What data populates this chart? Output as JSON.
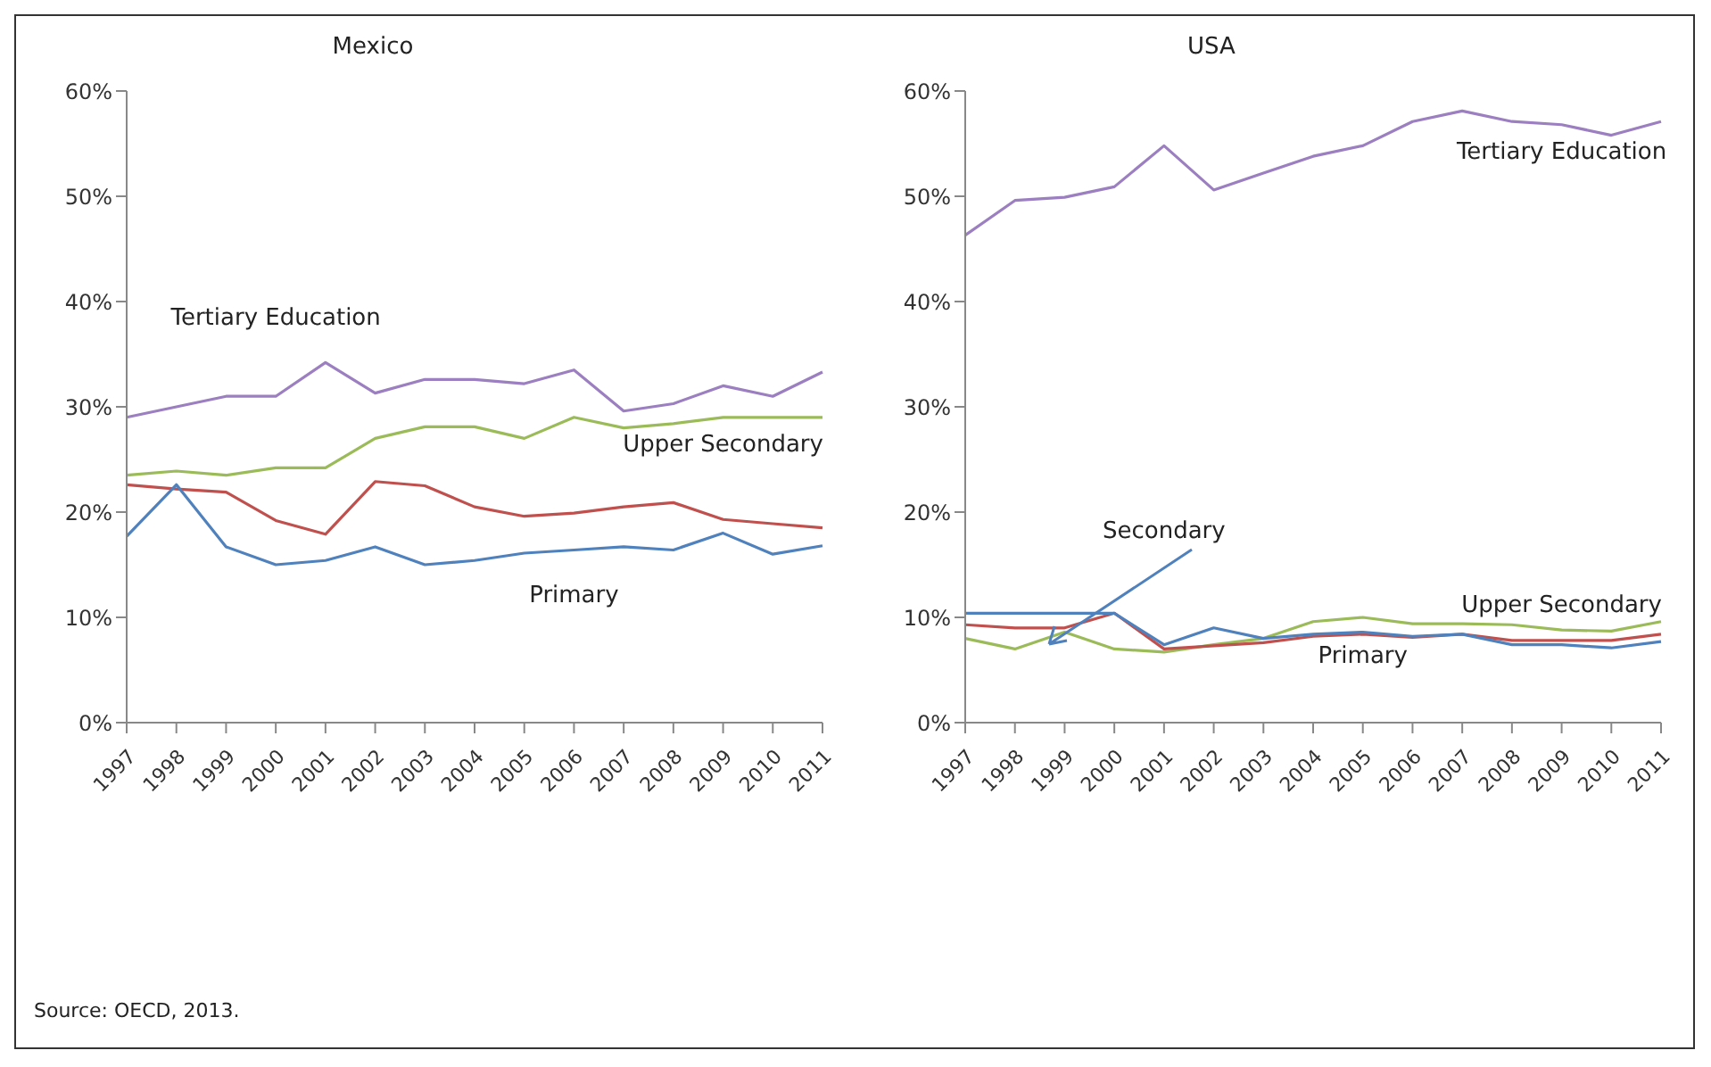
{
  "chart_data": [
    {
      "type": "line",
      "title": "Mexico",
      "categories": [
        "1997",
        "1998",
        "1999",
        "2000",
        "2001",
        "2002",
        "2003",
        "2004",
        "2005",
        "2006",
        "2007",
        "2008",
        "2009",
        "2010",
        "2011"
      ],
      "series": [
        {
          "name": "Tertiary  Education",
          "color": "#9b7fc0",
          "values": [
            29,
            30,
            31,
            31,
            34.2,
            31.3,
            32.6,
            32.6,
            32.2,
            33.5,
            29.6,
            30.3,
            32,
            31,
            33.3
          ]
        },
        {
          "name": "Upper Secondary",
          "color": "#9bbb59",
          "values": [
            23.5,
            23.9,
            23.5,
            24.2,
            24.2,
            27,
            28.1,
            28.1,
            27,
            29,
            28,
            28.4,
            29,
            29,
            29
          ]
        },
        {
          "color": "#c0504d",
          "values": [
            22.6,
            22.2,
            21.9,
            19.2,
            17.9,
            22.9,
            22.5,
            20.5,
            19.6,
            19.9,
            20.5,
            20.9,
            19.3,
            18.9,
            18.5
          ]
        },
        {
          "name": "Primary",
          "color": "#4f81bd",
          "values": [
            17.7,
            22.6,
            16.7,
            15,
            15.4,
            16.7,
            15,
            15.4,
            16.1,
            16.4,
            16.7,
            16.4,
            18,
            16,
            16.8
          ]
        }
      ],
      "ylim": [
        0,
        60
      ],
      "yticks": [
        {
          "value": 0,
          "label": "0%"
        },
        {
          "value": 10,
          "label": "10%"
        },
        {
          "value": 20,
          "label": "20%"
        },
        {
          "value": 30,
          "label": "30%"
        },
        {
          "value": 40,
          "label": "40%"
        },
        {
          "value": 50,
          "label": "50%"
        },
        {
          "value": 60,
          "label": "60%"
        }
      ],
      "grid": false,
      "legend": false,
      "marker": "none",
      "line_style": "solid",
      "annotations": [
        "Source: OECD, 2013."
      ]
    },
    {
      "type": "line",
      "title": "USA",
      "categories": [
        "1997",
        "1998",
        "1999",
        "2000",
        "2001",
        "2002",
        "2003",
        "2004",
        "2005",
        "2006",
        "2007",
        "2008",
        "2009",
        "2010",
        "2011"
      ],
      "series": [
        {
          "name": "Tertiary  Education",
          "color": "#9b7fc0",
          "values": [
            46.3,
            49.6,
            49.9,
            50.9,
            54.8,
            50.6,
            52.2,
            53.8,
            54.8,
            57.1,
            58.1,
            57.1,
            56.8,
            55.8,
            57.1
          ]
        },
        {
          "name": "Upper Secondary",
          "color": "#9bbb59",
          "values": [
            8,
            7,
            8.6,
            7,
            6.7,
            7.4,
            8,
            9.6,
            10,
            9.4,
            9.4,
            9.3,
            8.8,
            8.7,
            9.6
          ]
        },
        {
          "name": "Secondary",
          "color": "#c0504d",
          "values": [
            9.3,
            9,
            9,
            10.4,
            7,
            7.3,
            7.6,
            8.2,
            8.4,
            8.1,
            8.4,
            7.8,
            7.8,
            7.8,
            8.4
          ]
        },
        {
          "name": "Primary",
          "color": "#4f81bd",
          "values": [
            10.4,
            10.4,
            10.4,
            10.4,
            7.4,
            9,
            8,
            8.4,
            8.6,
            8.2,
            8.4,
            7.4,
            7.4,
            7.1,
            7.7
          ]
        }
      ],
      "ylim": [
        0,
        60
      ],
      "yticks": [
        {
          "value": 0,
          "label": "0%"
        },
        {
          "value": 10,
          "label": "10%"
        },
        {
          "value": 20,
          "label": "20%"
        },
        {
          "value": 30,
          "label": "30%"
        },
        {
          "value": 40,
          "label": "40%"
        },
        {
          "value": 50,
          "label": "50%"
        },
        {
          "value": 60,
          "label": "60%"
        }
      ],
      "grid": false,
      "legend": false,
      "marker": "none",
      "line_style": "solid"
    }
  ]
}
